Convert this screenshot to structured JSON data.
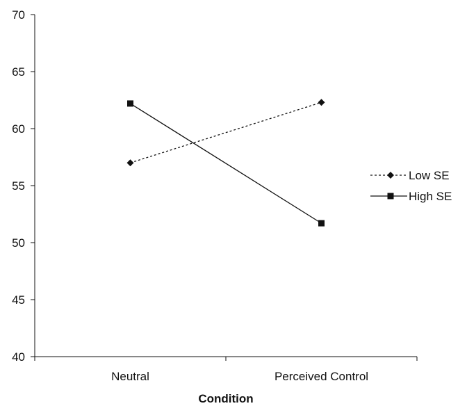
{
  "chart_data": {
    "type": "line",
    "title": "",
    "xlabel": "Condition",
    "ylabel": "",
    "categories": [
      "Neutral",
      "Perceived Control"
    ],
    "ylim": [
      40,
      70
    ],
    "yticks": [
      40,
      45,
      50,
      55,
      60,
      65,
      70
    ],
    "grid": false,
    "legend_position": "right",
    "series": [
      {
        "name": "Low SE",
        "values": [
          57.0,
          62.3
        ],
        "line_style": "dotted",
        "marker": "diamond",
        "color": "#111111"
      },
      {
        "name": "High SE",
        "values": [
          62.2,
          51.7
        ],
        "line_style": "solid",
        "marker": "square",
        "color": "#111111"
      }
    ]
  }
}
